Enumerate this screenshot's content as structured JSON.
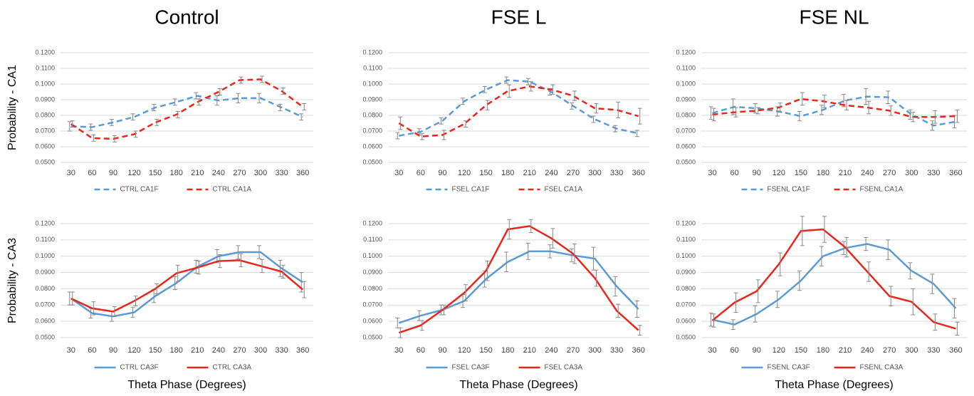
{
  "chart_data": [
    {
      "type": "line",
      "title": "Control",
      "ylabel": "Probability - CA1",
      "categories": [
        "30",
        "60",
        "90",
        "120",
        "150",
        "180",
        "210",
        "240",
        "270",
        "300",
        "330",
        "360"
      ],
      "ylim": [
        0.05,
        0.12
      ],
      "yticks": [
        {
          "value": 0.05,
          "label": "0.0500"
        },
        {
          "value": 0.06,
          "label": "0.0600"
        },
        {
          "value": 0.07,
          "label": "0.0700"
        },
        {
          "value": 0.08,
          "label": "0.0800"
        },
        {
          "value": 0.09,
          "label": "0.0900"
        },
        {
          "value": 0.1,
          "label": "0.1000"
        },
        {
          "value": 0.11,
          "label": "0.1100"
        },
        {
          "value": 0.12,
          "label": "0.1200"
        }
      ],
      "grid": true,
      "series": [
        {
          "name": "CTRL CA1F",
          "color": "#5b9bd5",
          "dashed": true,
          "values": [
            0.073,
            0.0725,
            0.0755,
            0.079,
            0.085,
            0.0885,
            0.0925,
            0.0895,
            0.091,
            0.091,
            0.085,
            0.079
          ],
          "errors": [
            0.003,
            0.002,
            0.002,
            0.002,
            0.002,
            0.002,
            0.002,
            0.003,
            0.003,
            0.003,
            0.002,
            0.002
          ]
        },
        {
          "name": "CTRL CA1A",
          "color": "#e8261c",
          "dashed": true,
          "values": [
            0.0745,
            0.0655,
            0.065,
            0.068,
            0.0755,
            0.0805,
            0.0885,
            0.095,
            0.1025,
            0.103,
            0.0955,
            0.0855
          ],
          "errors": [
            0.002,
            0.002,
            0.002,
            0.002,
            0.002,
            0.002,
            0.002,
            0.002,
            0.002,
            0.002,
            0.002,
            0.002
          ]
        }
      ]
    },
    {
      "type": "line",
      "title": "FSE L",
      "categories": [
        "30",
        "60",
        "90",
        "120",
        "150",
        "180",
        "210",
        "240",
        "270",
        "300",
        "330",
        "360"
      ],
      "ylim": [
        0.05,
        0.12
      ],
      "yticks": [
        {
          "value": 0.05,
          "label": "0.0500"
        },
        {
          "value": 0.06,
          "label": "0.0600"
        },
        {
          "value": 0.07,
          "label": "0.0700"
        },
        {
          "value": 0.08,
          "label": "0.0800"
        },
        {
          "value": 0.09,
          "label": "0.0900"
        },
        {
          "value": 0.1,
          "label": "0.1000"
        },
        {
          "value": 0.11,
          "label": "0.1100"
        },
        {
          "value": 0.12,
          "label": "0.1200"
        }
      ],
      "grid": true,
      "series": [
        {
          "name": "FSEL CA1F",
          "color": "#5b9bd5",
          "dashed": true,
          "values": [
            0.067,
            0.0695,
            0.0765,
            0.089,
            0.0965,
            0.1025,
            0.1015,
            0.095,
            0.086,
            0.0775,
            0.0715,
            0.0685
          ],
          "errors": [
            0.002,
            0.002,
            0.002,
            0.002,
            0.002,
            0.002,
            0.002,
            0.002,
            0.002,
            0.002,
            0.002,
            0.002
          ]
        },
        {
          "name": "FSEL CA1A",
          "color": "#e8261c",
          "dashed": true,
          "values": [
            0.075,
            0.0665,
            0.0675,
            0.0745,
            0.0865,
            0.0955,
            0.0985,
            0.0965,
            0.0925,
            0.0845,
            0.0835,
            0.0795
          ],
          "errors": [
            0.004,
            0.002,
            0.003,
            0.002,
            0.003,
            0.004,
            0.003,
            0.003,
            0.003,
            0.003,
            0.005,
            0.005
          ]
        }
      ]
    },
    {
      "type": "line",
      "title": "FSE NL",
      "categories": [
        "30",
        "60",
        "90",
        "120",
        "150",
        "180",
        "210",
        "240",
        "270",
        "300",
        "330",
        "360"
      ],
      "ylim": [
        0.05,
        0.12
      ],
      "yticks": [
        {
          "value": 0.05,
          "label": "0.0500"
        },
        {
          "value": 0.06,
          "label": "0.0600"
        },
        {
          "value": 0.07,
          "label": "0.0700"
        },
        {
          "value": 0.08,
          "label": "0.0800"
        },
        {
          "value": 0.09,
          "label": "0.0900"
        },
        {
          "value": 0.1,
          "label": "0.1000"
        },
        {
          "value": 0.11,
          "label": "0.1100"
        },
        {
          "value": 0.12,
          "label": "0.1200"
        }
      ],
      "grid": true,
      "series": [
        {
          "name": "FSENL CA1F",
          "color": "#5b9bd5",
          "dashed": true,
          "values": [
            0.0815,
            0.0855,
            0.0845,
            0.0825,
            0.0795,
            0.0835,
            0.0895,
            0.092,
            0.0915,
            0.0805,
            0.0735,
            0.076
          ],
          "errors": [
            0.004,
            0.005,
            0.003,
            0.003,
            0.003,
            0.003,
            0.004,
            0.005,
            0.004,
            0.003,
            0.003,
            0.004
          ]
        },
        {
          "name": "FSENL CA1A",
          "color": "#e8261c",
          "dashed": true,
          "values": [
            0.0805,
            0.082,
            0.083,
            0.085,
            0.0905,
            0.089,
            0.0865,
            0.085,
            0.083,
            0.079,
            0.079,
            0.0795
          ],
          "errors": [
            0.004,
            0.003,
            0.002,
            0.003,
            0.004,
            0.004,
            0.003,
            0.004,
            0.003,
            0.003,
            0.004,
            0.004
          ]
        }
      ]
    },
    {
      "type": "line",
      "ylabel": "Probability - CA3",
      "xlabel": "Theta Phase (Degrees)",
      "categories": [
        "30",
        "60",
        "90",
        "120",
        "150",
        "180",
        "210",
        "240",
        "270",
        "300",
        "330",
        "360"
      ],
      "ylim": [
        0.05,
        0.12
      ],
      "yticks": [
        {
          "value": 0.05,
          "label": "0.0500"
        },
        {
          "value": 0.06,
          "label": "0.0600"
        },
        {
          "value": 0.07,
          "label": "0.0700"
        },
        {
          "value": 0.08,
          "label": "0.0800"
        },
        {
          "value": 0.09,
          "label": "0.0900"
        },
        {
          "value": 0.1,
          "label": "0.1000"
        },
        {
          "value": 0.11,
          "label": "0.1100"
        },
        {
          "value": 0.12,
          "label": "0.1200"
        }
      ],
      "grid": true,
      "series": [
        {
          "name": "CTRL CA3F",
          "color": "#5b9bd5",
          "dashed": false,
          "values": [
            0.074,
            0.065,
            0.063,
            0.0655,
            0.0755,
            0.0835,
            0.0935,
            0.1,
            0.1025,
            0.1025,
            0.0925,
            0.084
          ],
          "errors": [
            0.004,
            0.003,
            0.003,
            0.003,
            0.004,
            0.004,
            0.004,
            0.004,
            0.004,
            0.004,
            0.005,
            0.006
          ]
        },
        {
          "name": "CTRL CA3A",
          "color": "#e8261c",
          "dashed": false,
          "values": [
            0.074,
            0.068,
            0.066,
            0.0725,
            0.08,
            0.0895,
            0.093,
            0.097,
            0.0975,
            0.094,
            0.0905,
            0.0795
          ],
          "errors": [
            0.004,
            0.004,
            0.003,
            0.003,
            0.003,
            0.005,
            0.004,
            0.004,
            0.004,
            0.004,
            0.004,
            0.005
          ]
        }
      ]
    },
    {
      "type": "line",
      "xlabel": "Theta Phase (Degrees)",
      "categories": [
        "30",
        "60",
        "90",
        "120",
        "150",
        "180",
        "210",
        "240",
        "270",
        "300",
        "330",
        "360"
      ],
      "ylim": [
        0.05,
        0.12
      ],
      "yticks": [
        {
          "value": 0.05,
          "label": "0.0500"
        },
        {
          "value": 0.06,
          "label": "0.0600"
        },
        {
          "value": 0.07,
          "label": "0.0700"
        },
        {
          "value": 0.08,
          "label": "0.0800"
        },
        {
          "value": 0.09,
          "label": "0.0900"
        },
        {
          "value": 0.1,
          "label": "0.1000"
        },
        {
          "value": 0.11,
          "label": "0.1100"
        },
        {
          "value": 0.12,
          "label": "0.1200"
        }
      ],
      "grid": true,
      "series": [
        {
          "name": "FSEL CA3F",
          "color": "#5b9bd5",
          "dashed": false,
          "values": [
            0.059,
            0.0635,
            0.067,
            0.0725,
            0.086,
            0.0965,
            0.103,
            0.103,
            0.1005,
            0.0985,
            0.0815,
            0.0675
          ],
          "errors": [
            0.003,
            0.003,
            0.003,
            0.004,
            0.005,
            0.006,
            0.005,
            0.004,
            0.004,
            0.007,
            0.006,
            0.005
          ]
        },
        {
          "name": "FSEL CA3A",
          "color": "#e8261c",
          "dashed": false,
          "values": [
            0.053,
            0.0575,
            0.067,
            0.0775,
            0.091,
            0.1165,
            0.1185,
            0.111,
            0.1015,
            0.0865,
            0.0665,
            0.0545
          ],
          "errors": [
            0.003,
            0.003,
            0.003,
            0.005,
            0.006,
            0.006,
            0.004,
            0.006,
            0.006,
            0.005,
            0.004,
            0.003
          ]
        }
      ]
    },
    {
      "type": "line",
      "xlabel": "Theta Phase (Degrees)",
      "categories": [
        "30",
        "60",
        "90",
        "120",
        "150",
        "180",
        "210",
        "240",
        "270",
        "300",
        "330",
        "360"
      ],
      "ylim": [
        0.05,
        0.12
      ],
      "yticks": [
        {
          "value": 0.05,
          "label": "0.0500"
        },
        {
          "value": 0.06,
          "label": "0.0600"
        },
        {
          "value": 0.07,
          "label": "0.0700"
        },
        {
          "value": 0.08,
          "label": "0.0800"
        },
        {
          "value": 0.09,
          "label": "0.0900"
        },
        {
          "value": 0.1,
          "label": "0.1000"
        },
        {
          "value": 0.11,
          "label": "0.1100"
        },
        {
          "value": 0.12,
          "label": "0.1200"
        }
      ],
      "grid": true,
      "series": [
        {
          "name": "FSENL CA3F",
          "color": "#5b9bd5",
          "dashed": false,
          "values": [
            0.061,
            0.058,
            0.0645,
            0.0735,
            0.085,
            0.1,
            0.105,
            0.1075,
            0.104,
            0.091,
            0.083,
            0.068
          ],
          "errors": [
            0.004,
            0.003,
            0.005,
            0.005,
            0.006,
            0.006,
            0.004,
            0.004,
            0.006,
            0.005,
            0.006,
            0.006
          ]
        },
        {
          "name": "FSENL CA3A",
          "color": "#e8261c",
          "dashed": false,
          "values": [
            0.0605,
            0.0715,
            0.0785,
            0.095,
            0.1155,
            0.1165,
            0.1055,
            0.0905,
            0.0755,
            0.072,
            0.0595,
            0.0555
          ],
          "errors": [
            0.004,
            0.006,
            0.007,
            0.007,
            0.009,
            0.008,
            0.006,
            0.006,
            0.006,
            0.008,
            0.005,
            0.004
          ]
        }
      ]
    }
  ]
}
